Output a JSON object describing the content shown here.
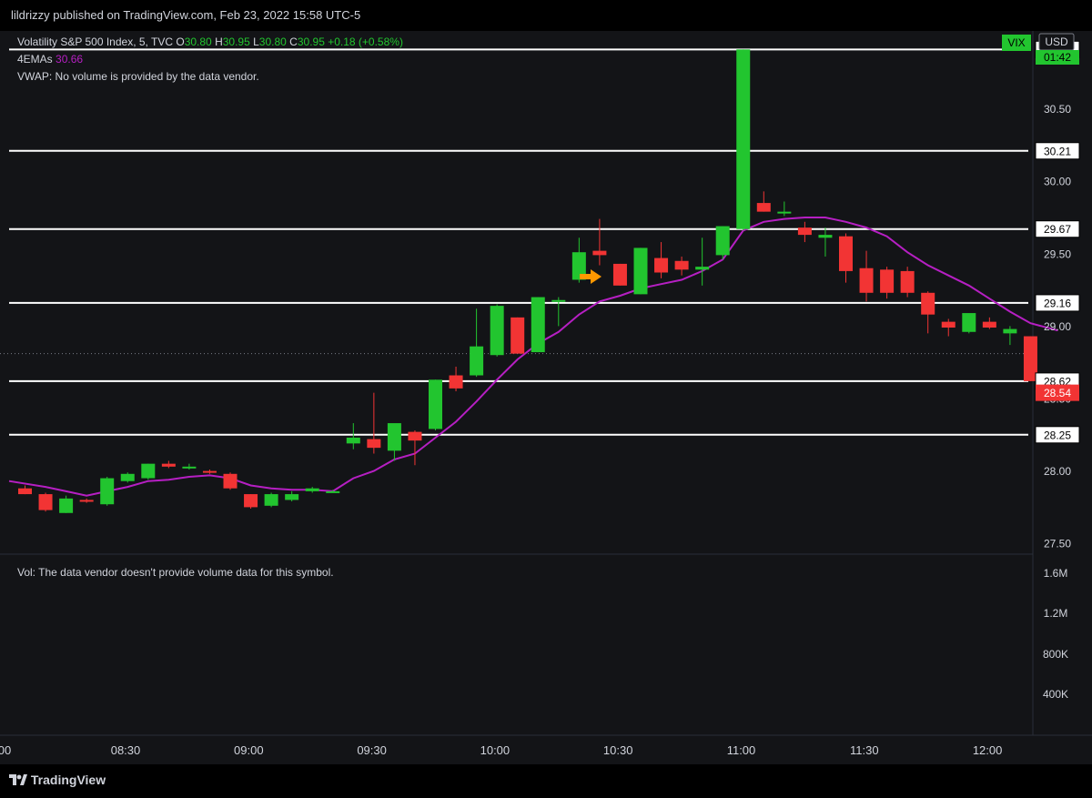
{
  "publish_line": "lildrizzy published on TradingView.com, Feb 23, 2022 15:58 UTC-5",
  "brand": "TradingView",
  "legend": {
    "symbol": "Volatility S&P 500 Index, 5, TVC",
    "o_label": "O",
    "o_val": "30.80",
    "h_label": "H",
    "h_val": "30.95",
    "l_label": "L",
    "l_val": "30.80",
    "c_label": "C",
    "c_val": "30.95",
    "change": "+0.18 (+0.58%)",
    "ema_label": "4EMAs",
    "ema_val": "30.66",
    "vwap": "VWAP: No volume is provided by the data vendor."
  },
  "volume_pane": {
    "text": "Vol: The data vendor doesn't provide volume data for this symbol.",
    "ticks": [
      "1.6M",
      "1.2M",
      "800K",
      "400K"
    ]
  },
  "badges": {
    "symbol": "VIX",
    "currency": "USD",
    "countdown": "01:42",
    "last_price": "28.54"
  },
  "colors": {
    "up": "#22c52f",
    "down": "#f23434",
    "ema": "#b61fc3",
    "level_line": "#ffffff",
    "background": "#131417",
    "text": "#d1d4dc",
    "arrow": "#ff9800"
  },
  "chart_data": {
    "type": "candlestick",
    "timeframe": "5",
    "price_ticks": [
      27.5,
      28.0,
      28.5,
      29.0,
      29.5,
      30.0,
      30.5
    ],
    "ylim": [
      27.45,
      31.05
    ],
    "time_ticks": [
      "00",
      "08:30",
      "09:00",
      "09:30",
      "10:00",
      "10:30",
      "11:00",
      "11:30",
      "12:00"
    ],
    "horizontal_levels": [
      {
        "label": "30.91",
        "value": 30.91
      },
      {
        "label": "30.21",
        "value": 30.21
      },
      {
        "label": "29.67",
        "value": 29.67
      },
      {
        "label": "29.16",
        "value": 29.16
      },
      {
        "label": "28.62",
        "value": 28.62
      },
      {
        "label": "28.25",
        "value": 28.25
      }
    ],
    "last_price": 28.54,
    "last_price_dotted": 28.81,
    "candles": [
      {
        "o": 27.88,
        "h": 27.9,
        "l": 27.84,
        "c": 27.84
      },
      {
        "o": 27.84,
        "h": 27.85,
        "l": 27.72,
        "c": 27.73
      },
      {
        "o": 27.71,
        "h": 27.83,
        "l": 27.71,
        "c": 27.81
      },
      {
        "o": 27.8,
        "h": 27.81,
        "l": 27.78,
        "c": 27.79
      },
      {
        "o": 27.77,
        "h": 27.96,
        "l": 27.76,
        "c": 27.95
      },
      {
        "o": 27.93,
        "h": 27.99,
        "l": 27.92,
        "c": 27.98
      },
      {
        "o": 27.95,
        "h": 28.05,
        "l": 27.94,
        "c": 28.05
      },
      {
        "o": 28.05,
        "h": 28.07,
        "l": 28.02,
        "c": 28.03
      },
      {
        "o": 28.02,
        "h": 28.05,
        "l": 28.01,
        "c": 28.03
      },
      {
        "o": 28.0,
        "h": 28.01,
        "l": 27.98,
        "c": 27.99
      },
      {
        "o": 27.98,
        "h": 27.99,
        "l": 27.87,
        "c": 27.88
      },
      {
        "o": 27.84,
        "h": 27.84,
        "l": 27.74,
        "c": 27.75
      },
      {
        "o": 27.76,
        "h": 27.85,
        "l": 27.75,
        "c": 27.84
      },
      {
        "o": 27.8,
        "h": 27.86,
        "l": 27.79,
        "c": 27.84
      },
      {
        "o": 27.86,
        "h": 27.89,
        "l": 27.85,
        "c": 27.88
      },
      {
        "o": 27.86,
        "h": 27.87,
        "l": 27.85,
        "c": 27.86
      },
      {
        "o": 28.19,
        "h": 28.33,
        "l": 28.15,
        "c": 28.23
      },
      {
        "o": 28.22,
        "h": 28.54,
        "l": 28.12,
        "c": 28.16
      },
      {
        "o": 28.14,
        "h": 28.32,
        "l": 28.07,
        "c": 28.33
      },
      {
        "o": 28.27,
        "h": 28.28,
        "l": 28.04,
        "c": 28.21
      },
      {
        "o": 28.29,
        "h": 28.63,
        "l": 28.28,
        "c": 28.63
      },
      {
        "o": 28.66,
        "h": 28.72,
        "l": 28.55,
        "c": 28.57
      },
      {
        "o": 28.66,
        "h": 29.12,
        "l": 28.65,
        "c": 28.86
      },
      {
        "o": 28.8,
        "h": 29.15,
        "l": 28.79,
        "c": 29.14
      },
      {
        "o": 29.06,
        "h": 29.06,
        "l": 28.82,
        "c": 28.81
      },
      {
        "o": 28.82,
        "h": 29.2,
        "l": 28.82,
        "c": 29.2
      },
      {
        "o": 29.18,
        "h": 29.2,
        "l": 29.0,
        "c": 29.18
      },
      {
        "o": 29.32,
        "h": 29.61,
        "l": 29.3,
        "c": 29.51
      },
      {
        "o": 29.52,
        "h": 29.74,
        "l": 29.42,
        "c": 29.49
      },
      {
        "o": 29.43,
        "h": 29.43,
        "l": 29.28,
        "c": 29.28
      },
      {
        "o": 29.22,
        "h": 29.54,
        "l": 29.22,
        "c": 29.54
      },
      {
        "o": 29.47,
        "h": 29.58,
        "l": 29.33,
        "c": 29.37
      },
      {
        "o": 29.45,
        "h": 29.48,
        "l": 29.35,
        "c": 29.39
      },
      {
        "o": 29.39,
        "h": 29.61,
        "l": 29.28,
        "c": 29.41
      },
      {
        "o": 29.49,
        "h": 29.69,
        "l": 29.46,
        "c": 29.69
      },
      {
        "o": 29.67,
        "h": 30.91,
        "l": 29.66,
        "c": 30.91
      },
      {
        "o": 29.85,
        "h": 29.93,
        "l": 29.79,
        "c": 29.79
      },
      {
        "o": 29.78,
        "h": 29.86,
        "l": 29.76,
        "c": 29.79
      },
      {
        "o": 29.68,
        "h": 29.72,
        "l": 29.58,
        "c": 29.63
      },
      {
        "o": 29.61,
        "h": 29.68,
        "l": 29.48,
        "c": 29.63
      },
      {
        "o": 29.62,
        "h": 29.64,
        "l": 29.3,
        "c": 29.38
      },
      {
        "o": 29.4,
        "h": 29.52,
        "l": 29.17,
        "c": 29.23
      },
      {
        "o": 29.39,
        "h": 29.41,
        "l": 29.19,
        "c": 29.23
      },
      {
        "o": 29.38,
        "h": 29.41,
        "l": 29.2,
        "c": 29.23
      },
      {
        "o": 29.23,
        "h": 29.24,
        "l": 28.95,
        "c": 29.08
      },
      {
        "o": 29.03,
        "h": 29.05,
        "l": 28.93,
        "c": 28.99
      },
      {
        "o": 28.96,
        "h": 29.08,
        "l": 28.95,
        "c": 29.09
      },
      {
        "o": 29.03,
        "h": 29.06,
        "l": 28.98,
        "c": 28.99
      },
      {
        "o": 28.95,
        "h": 29.0,
        "l": 28.87,
        "c": 28.98
      },
      {
        "o": 28.93,
        "h": 28.93,
        "l": 28.62,
        "c": 28.62
      }
    ],
    "ema": [
      27.93,
      27.89,
      27.86,
      27.83,
      27.86,
      27.89,
      27.93,
      27.94,
      27.96,
      27.97,
      27.95,
      27.9,
      27.88,
      27.87,
      27.87,
      27.86,
      27.95,
      28.0,
      28.08,
      28.12,
      28.23,
      28.34,
      28.48,
      28.63,
      28.77,
      28.88,
      28.96,
      29.08,
      29.17,
      29.21,
      29.26,
      29.29,
      29.32,
      29.38,
      29.46,
      29.66,
      29.72,
      29.74,
      29.75,
      29.75,
      29.72,
      29.68,
      29.62,
      29.51,
      29.42,
      29.35,
      29.28,
      29.19,
      29.1,
      29.02
    ]
  }
}
